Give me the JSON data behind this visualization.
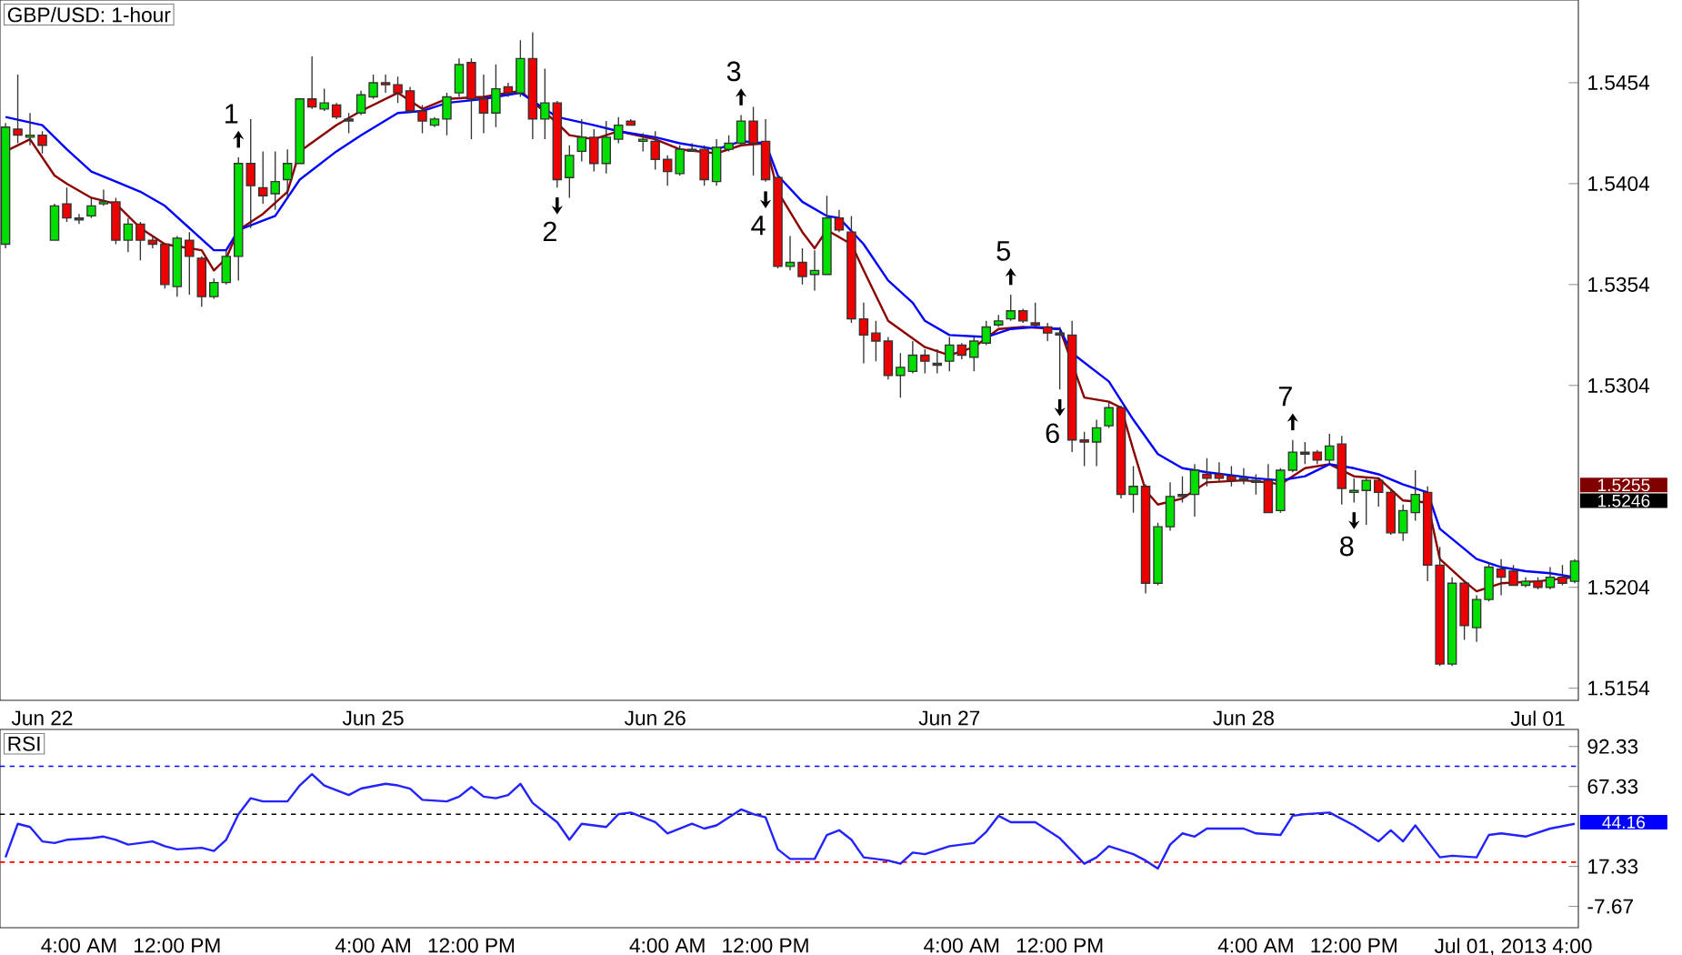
{
  "chart_data": [
    {
      "type": "candlestick",
      "title": "GBP/USD: 1-hour",
      "categories": [
        null,
        null,
        null,
        "Jun 22",
        null,
        null,
        null,
        null,
        null,
        null,
        null,
        null,
        null,
        null,
        null,
        null,
        null,
        null,
        null,
        null,
        null,
        null,
        null,
        null,
        null,
        null,
        null,
        null,
        null,
        null,
        "Jun 25",
        null,
        null,
        null,
        null,
        null,
        null,
        null,
        null,
        null,
        null,
        null,
        null,
        null,
        null,
        null,
        null,
        null,
        null,
        null,
        null,
        null,
        null,
        "Jun 26",
        null,
        null,
        null,
        null,
        null,
        null,
        null,
        null,
        null,
        null,
        null,
        null,
        null,
        null,
        null,
        null,
        null,
        null,
        null,
        null,
        null,
        null,
        null,
        "Jun 27",
        null,
        null,
        null,
        null,
        null,
        null,
        null,
        null,
        null,
        null,
        null,
        null,
        null,
        null,
        null,
        null,
        null,
        null,
        null,
        null,
        null,
        null,
        null,
        "Jun 28",
        null,
        null,
        null,
        null,
        null,
        null,
        null,
        null,
        null,
        null,
        null,
        null,
        null,
        null,
        null,
        null,
        null,
        null,
        null,
        null,
        null,
        null,
        null,
        "Jul 01",
        null,
        null,
        null
      ],
      "ohlc": [
        [
          1.5374,
          1.5434,
          1.5372,
          1.5432
        ],
        [
          1.5431,
          1.5458,
          1.5424,
          1.5428
        ],
        [
          1.5427,
          1.5439,
          1.5423,
          1.5428
        ],
        [
          1.5428,
          1.543,
          1.5419,
          1.5423
        ],
        [
          1.5376,
          1.5394,
          1.5376,
          1.5393
        ],
        [
          1.5394,
          1.5402,
          1.5385,
          1.5387
        ],
        [
          1.5387,
          1.5389,
          1.5384,
          1.5386
        ],
        [
          1.5388,
          1.5397,
          1.5387,
          1.5393
        ],
        [
          1.5394,
          1.5401,
          1.5393,
          1.5395
        ],
        [
          1.5395,
          1.5397,
          1.5374,
          1.5376
        ],
        [
          1.5376,
          1.5387,
          1.537,
          1.5384
        ],
        [
          1.5384,
          1.5385,
          1.5366,
          1.5376
        ],
        [
          1.5376,
          1.5378,
          1.5372,
          1.5374
        ],
        [
          1.5374,
          1.5374,
          1.5352,
          1.5354
        ],
        [
          1.5353,
          1.5378,
          1.5348,
          1.5377
        ],
        [
          1.5376,
          1.538,
          1.5349,
          1.5368
        ],
        [
          1.5367,
          1.5368,
          1.5343,
          1.5348
        ],
        [
          1.5348,
          1.5357,
          1.5347,
          1.5355
        ],
        [
          1.5355,
          1.5371,
          1.5354,
          1.5368
        ],
        [
          1.5368,
          1.5417,
          1.5356,
          1.5414
        ],
        [
          1.5414,
          1.5436,
          1.5382,
          1.5403
        ],
        [
          1.5402,
          1.542,
          1.5394,
          1.5398
        ],
        [
          1.5399,
          1.542,
          1.5391,
          1.5405
        ],
        [
          1.5406,
          1.5421,
          1.5397,
          1.5414
        ],
        [
          1.5414,
          1.5446,
          1.5414,
          1.5446
        ],
        [
          1.5446,
          1.5467,
          1.5441,
          1.5442
        ],
        [
          1.5441,
          1.5451,
          1.544,
          1.5444
        ],
        [
          1.5443,
          1.5444,
          1.5436,
          1.5437
        ],
        [
          1.5436,
          1.5439,
          1.5429,
          1.5435
        ],
        [
          1.5439,
          1.545,
          1.5438,
          1.5448
        ],
        [
          1.5447,
          1.5458,
          1.5446,
          1.5454
        ],
        [
          1.5454,
          1.5458,
          1.5449,
          1.5453
        ],
        [
          1.5453,
          1.5457,
          1.5444,
          1.5449
        ],
        [
          1.545,
          1.5452,
          1.5439,
          1.544
        ],
        [
          1.544,
          1.5443,
          1.5429,
          1.5435
        ],
        [
          1.5433,
          1.5437,
          1.5432,
          1.5436
        ],
        [
          1.5436,
          1.5449,
          1.5428,
          1.5447
        ],
        [
          1.5449,
          1.5466,
          1.5447,
          1.5463
        ],
        [
          1.5464,
          1.5466,
          1.5426,
          1.5446
        ],
        [
          1.5446,
          1.5458,
          1.5429,
          1.5439
        ],
        [
          1.5439,
          1.5463,
          1.5432,
          1.5451
        ],
        [
          1.5452,
          1.5454,
          1.5447,
          1.5449
        ],
        [
          1.5449,
          1.5475,
          1.5447,
          1.5466
        ],
        [
          1.5466,
          1.5479,
          1.5426,
          1.5436
        ],
        [
          1.5436,
          1.5461,
          1.5426,
          1.5444
        ],
        [
          1.5444,
          1.5445,
          1.5402,
          1.5406
        ],
        [
          1.5407,
          1.5423,
          1.5397,
          1.5418
        ],
        [
          1.542,
          1.5436,
          1.5415,
          1.5427
        ],
        [
          1.5427,
          1.5431,
          1.541,
          1.5414
        ],
        [
          1.5414,
          1.5435,
          1.5409,
          1.5427
        ],
        [
          1.5426,
          1.5437,
          1.5424,
          1.5433
        ],
        [
          1.5435,
          1.5436,
          1.5433,
          1.5433
        ],
        [
          1.5425,
          1.5429,
          1.542,
          1.5426
        ],
        [
          1.5425,
          1.543,
          1.5411,
          1.5416
        ],
        [
          1.5416,
          1.5418,
          1.5403,
          1.541
        ],
        [
          1.5409,
          1.5423,
          1.5408,
          1.5421
        ],
        [
          1.5421,
          1.5424,
          1.542,
          1.542
        ],
        [
          1.5421,
          1.5423,
          1.5403,
          1.5406
        ],
        [
          1.5405,
          1.5426,
          1.5403,
          1.5422
        ],
        [
          1.5421,
          1.5428,
          1.542,
          1.5424
        ],
        [
          1.5424,
          1.5438,
          1.5423,
          1.5435
        ],
        [
          1.5435,
          1.5442,
          1.5408,
          1.5424
        ],
        [
          1.5425,
          1.5436,
          1.5405,
          1.5406
        ],
        [
          1.5407,
          1.5408,
          1.5362,
          1.5363
        ],
        [
          1.5363,
          1.5378,
          1.5361,
          1.5365
        ],
        [
          1.5365,
          1.5372,
          1.5354,
          1.5358
        ],
        [
          1.5359,
          1.5371,
          1.5351,
          1.5361
        ],
        [
          1.5359,
          1.5398,
          1.5359,
          1.5387
        ],
        [
          1.5387,
          1.5391,
          1.538,
          1.5381
        ],
        [
          1.538,
          1.5388,
          1.5335,
          1.5337
        ],
        [
          1.5337,
          1.5345,
          1.5315,
          1.5329
        ],
        [
          1.533,
          1.5336,
          1.5316,
          1.5326
        ],
        [
          1.5326,
          1.5328,
          1.5307,
          1.5309
        ],
        [
          1.5309,
          1.532,
          1.5298,
          1.5313
        ],
        [
          1.5311,
          1.5326,
          1.531,
          1.5319
        ],
        [
          1.5319,
          1.5322,
          1.531,
          1.5316
        ],
        [
          1.5315,
          1.5322,
          1.531,
          1.5314
        ],
        [
          1.5316,
          1.5328,
          1.5311,
          1.5324
        ],
        [
          1.5324,
          1.5325,
          1.5317,
          1.5319
        ],
        [
          1.5318,
          1.5328,
          1.5311,
          1.5326
        ],
        [
          1.5325,
          1.5336,
          1.5324,
          1.5333
        ],
        [
          1.5334,
          1.5339,
          1.5333,
          1.5336
        ],
        [
          1.5337,
          1.5349,
          1.5336,
          1.5341
        ],
        [
          1.5341,
          1.5342,
          1.5335,
          1.5336
        ],
        [
          1.5335,
          1.5345,
          1.5333,
          1.5334
        ],
        [
          1.5333,
          1.5335,
          1.5326,
          1.533
        ],
        [
          1.533,
          1.5333,
          1.5302,
          1.5329
        ],
        [
          1.5329,
          1.5336,
          1.5271,
          1.5277
        ],
        [
          1.5277,
          1.5281,
          1.5264,
          1.5276
        ],
        [
          1.5276,
          1.5287,
          1.5264,
          1.5283
        ],
        [
          1.5284,
          1.5296,
          1.5283,
          1.5293
        ],
        [
          1.5293,
          1.5294,
          1.5248,
          1.525
        ],
        [
          1.525,
          1.5264,
          1.5241,
          1.5254
        ],
        [
          1.5254,
          1.5255,
          1.5201,
          1.5206
        ],
        [
          1.5206,
          1.5236,
          1.5205,
          1.5234
        ],
        [
          1.5234,
          1.5256,
          1.5232,
          1.5249
        ],
        [
          1.525,
          1.5259,
          1.5246,
          1.5249
        ],
        [
          1.525,
          1.5265,
          1.5239,
          1.5262
        ],
        [
          1.526,
          1.5268,
          1.5254,
          1.5258
        ],
        [
          1.526,
          1.5266,
          1.5256,
          1.5258
        ],
        [
          1.5259,
          1.5264,
          1.5254,
          1.5257
        ],
        [
          1.5258,
          1.5263,
          1.5255,
          1.5257
        ],
        [
          1.5257,
          1.526,
          1.525,
          1.5256
        ],
        [
          1.5257,
          1.5265,
          1.5241,
          1.5241
        ],
        [
          1.5242,
          1.5263,
          1.5241,
          1.5262
        ],
        [
          1.5262,
          1.5277,
          1.5261,
          1.5271
        ],
        [
          1.5271,
          1.5276,
          1.5265,
          1.527
        ],
        [
          1.5271,
          1.5272,
          1.5265,
          1.5267
        ],
        [
          1.5267,
          1.528,
          1.5265,
          1.5274
        ],
        [
          1.5275,
          1.5279,
          1.5245,
          1.5253
        ],
        [
          1.5251,
          1.5258,
          1.5246,
          1.5252
        ],
        [
          1.5252,
          1.5258,
          1.5235,
          1.5257
        ],
        [
          1.5257,
          1.5258,
          1.5244,
          1.5251
        ],
        [
          1.5251,
          1.5253,
          1.523,
          1.5231
        ],
        [
          1.5231,
          1.5245,
          1.5227,
          1.5242
        ],
        [
          1.5241,
          1.5262,
          1.5237,
          1.525
        ],
        [
          1.5251,
          1.5254,
          1.5207,
          1.5215
        ],
        [
          1.5215,
          1.5224,
          1.5165,
          1.5166
        ],
        [
          1.5166,
          1.5209,
          1.5165,
          1.5206
        ],
        [
          1.5206,
          1.5207,
          1.5178,
          1.5185
        ],
        [
          1.5184,
          1.52,
          1.5177,
          1.5198
        ],
        [
          1.5198,
          1.5216,
          1.5197,
          1.5214
        ],
        [
          1.5213,
          1.5218,
          1.52,
          1.5209
        ],
        [
          1.5212,
          1.5215,
          1.5205,
          1.5205
        ],
        [
          1.5205,
          1.5209,
          1.5204,
          1.5207
        ],
        [
          1.5207,
          1.5209,
          1.5203,
          1.5204
        ],
        [
          1.5204,
          1.5214,
          1.5203,
          1.5209
        ],
        [
          1.5209,
          1.5215,
          1.5205,
          1.5206
        ],
        [
          1.5207,
          1.5218,
          1.5206,
          1.5217
        ]
      ],
      "colors": [
        "#00e000",
        "#ee0000",
        "#00e000",
        "#ee0000",
        "#00e000",
        "#ee0000",
        "#404040",
        "#00e000",
        "#00e000",
        "#ee0000",
        "#00e000",
        "#ee0000",
        "#ee0000",
        "#ee0000",
        "#00e000",
        "#ee0000",
        "#ee0000",
        "#00e000",
        "#00e000",
        "#00e000",
        "#ee0000",
        "#ee0000",
        "#00e000",
        "#00e000",
        "#00e000",
        "#ee0000",
        "#00e000",
        "#ee0000",
        "#404040",
        "#00e000",
        "#00e000",
        "#ee0000",
        "#ee0000",
        "#ee0000",
        "#ee0000",
        "#00e000",
        "#00e000",
        "#00e000",
        "#ee0000",
        "#ee0000",
        "#00e000",
        "#ee0000",
        "#00e000",
        "#ee0000",
        "#00e000",
        "#ee0000",
        "#00e000",
        "#00e000",
        "#ee0000",
        "#00e000",
        "#00e000",
        "#ee0000",
        "#00e000",
        "#ee0000",
        "#ee0000",
        "#00e000",
        "#404040",
        "#ee0000",
        "#00e000",
        "#00e000",
        "#00e000",
        "#ee0000",
        "#ee0000",
        "#ee0000",
        "#00e000",
        "#ee0000",
        "#00e000",
        "#00e000",
        "#ee0000",
        "#ee0000",
        "#ee0000",
        "#ee0000",
        "#ee0000",
        "#00e000",
        "#00e000",
        "#ee0000",
        "#404040",
        "#00e000",
        "#ee0000",
        "#00e000",
        "#00e000",
        "#00e000",
        "#00e000",
        "#ee0000",
        "#ee0000",
        "#ee0000",
        "#404040",
        "#ee0000",
        "#ee0000",
        "#00e000",
        "#00e000",
        "#ee0000",
        "#00e000",
        "#ee0000",
        "#00e000",
        "#00e000",
        "#404040",
        "#00e000",
        "#ee0000",
        "#ee0000",
        "#ee0000",
        "#404040",
        "#404040",
        "#ee0000",
        "#00e000",
        "#00e000",
        "#404040",
        "#ee0000",
        "#00e000",
        "#ee0000",
        "#00e000",
        "#00e000",
        "#ee0000",
        "#ee0000",
        "#00e000",
        "#00e000",
        "#ee0000",
        "#ee0000",
        "#00e000",
        "#ee0000",
        "#00e000",
        "#00e000",
        "#ee0000",
        "#ee0000",
        "#00e000",
        "#ee0000",
        "#00e000",
        "#ee0000",
        "#00e000"
      ],
      "series": [
        {
          "type": "line",
          "color": "#8b0000",
          "values": [
            1.542,
            null,
            1.5426,
            null,
            1.5408,
            1.5404,
            null,
            1.5397,
            null,
            1.5394,
            null,
            1.5382,
            null,
            1.5374,
            null,
            null,
            1.5371,
            1.5361,
            1.5367,
            1.5381,
            null,
            1.5389,
            null,
            1.54,
            1.542,
            null,
            null,
            1.5433,
            null,
            1.544,
            null,
            null,
            1.5449,
            null,
            1.5441,
            null,
            1.5446,
            null,
            null,
            1.5447,
            null,
            null,
            1.545,
            null,
            null,
            1.5434,
            1.5428,
            null,
            1.5426,
            null,
            1.543,
            null,
            null,
            1.5426,
            null,
            1.5421,
            null,
            null,
            1.5419,
            null,
            1.5423,
            null,
            1.5424,
            1.54,
            null,
            1.538,
            1.5372,
            1.5381,
            null,
            1.5374,
            1.5361,
            null,
            1.5336,
            null,
            null,
            1.5323,
            null,
            1.5319,
            null,
            1.5323,
            null,
            1.5332,
            null,
            1.5333,
            null,
            null,
            1.5332,
            null,
            1.5298,
            null,
            1.5296,
            1.5293,
            1.5272,
            1.5252,
            1.5245,
            null,
            1.5248,
            null,
            1.5256,
            null,
            null,
            1.5257,
            null,
            1.5256,
            1.5255,
            null,
            1.5263,
            null,
            1.5265,
            null,
            1.5259,
            null,
            1.5258,
            null,
            1.5247,
            null,
            1.5246,
            1.5218,
            null,
            1.5207,
            1.5202,
            null,
            1.5206,
            null,
            null,
            1.5207,
            null,
            null,
            1.5209
          ]
        },
        {
          "type": "line",
          "color": "#0000ff",
          "values": [
            1.5437,
            null,
            null,
            1.5433,
            null,
            1.5421,
            null,
            1.541,
            null,
            1.5405,
            null,
            1.54,
            null,
            1.5393,
            null,
            1.5382,
            null,
            1.5371,
            1.5371,
            1.5381,
            null,
            null,
            1.5388,
            null,
            1.5406,
            null,
            null,
            1.542,
            null,
            1.5428,
            null,
            null,
            1.5439,
            null,
            1.544,
            null,
            1.5444,
            null,
            null,
            1.5446,
            null,
            null,
            1.5449,
            null,
            null,
            1.5437,
            null,
            null,
            1.5433,
            null,
            1.543,
            null,
            null,
            1.5427,
            null,
            1.5424,
            null,
            null,
            1.5421,
            null,
            1.5425,
            null,
            1.5424,
            1.5408,
            null,
            1.5395,
            null,
            1.5388,
            1.5387,
            null,
            1.5374,
            null,
            1.5356,
            null,
            1.5345,
            1.5336,
            null,
            1.5329,
            null,
            null,
            1.5328,
            null,
            1.5332,
            null,
            1.5333,
            null,
            1.5332,
            1.532,
            null,
            null,
            1.5306,
            null,
            1.5287,
            null,
            1.527,
            null,
            1.5263,
            null,
            1.5261,
            null,
            null,
            null,
            1.5258,
            null,
            1.5257,
            null,
            1.5259,
            null,
            1.5265,
            null,
            1.5263,
            null,
            1.526,
            null,
            1.5255,
            null,
            1.5251,
            1.5233,
            null,
            null,
            1.5218,
            null,
            1.5214,
            null,
            1.5212,
            null,
            1.5211,
            null,
            1.5209
          ]
        }
      ],
      "ylim": [
        1.5148,
        1.5495
      ],
      "yticks": [
        1.5154,
        1.5204,
        1.5304,
        1.5354,
        1.5404,
        1.5454
      ],
      "annotations": [
        {
          "text": "1",
          "y": 1.5417
        },
        {
          "text": "2",
          "y": 1.5402
        },
        {
          "text": "3",
          "y": 1.5438
        },
        {
          "text": "4",
          "y": 1.5405
        },
        {
          "text": "5",
          "y": 1.5349
        },
        {
          "text": "6",
          "y": 1.5302
        },
        {
          "text": "7",
          "y": 1.5277
        },
        {
          "text": "8",
          "y": 1.5246
        },
        "1.5255",
        "1.5246"
      ]
    },
    {
      "type": "line",
      "title": "RSI",
      "categories": [
        null,
        null,
        null,
        null,
        null,
        null,
        "4:00 AM",
        null,
        null,
        null,
        null,
        null,
        null,
        null,
        "12:00 PM",
        null,
        null,
        null,
        null,
        null,
        null,
        null,
        null,
        null,
        null,
        null,
        null,
        null,
        null,
        null,
        "4:00 AM",
        null,
        null,
        null,
        null,
        null,
        null,
        null,
        "12:00 PM",
        null,
        null,
        null,
        null,
        null,
        null,
        null,
        null,
        null,
        null,
        null,
        null,
        null,
        null,
        null,
        "4:00 AM",
        null,
        null,
        null,
        null,
        null,
        null,
        null,
        "12:00 PM",
        null,
        null,
        null,
        null,
        null,
        null,
        null,
        null,
        null,
        null,
        null,
        null,
        null,
        null,
        null,
        "4:00 AM",
        null,
        null,
        null,
        null,
        null,
        null,
        null,
        "12:00 PM",
        null,
        null,
        null,
        null,
        null,
        null,
        null,
        null,
        null,
        null,
        null,
        null,
        null,
        null,
        null,
        "4:00 AM",
        null,
        null,
        null,
        null,
        null,
        null,
        null,
        "12:00 PM",
        null,
        null,
        null,
        null,
        null,
        null,
        null,
        null,
        null,
        null,
        null,
        null,
        "Jul 01, 2013 4:00",
        null,
        null,
        null,
        null,
        null
      ],
      "series": [
        {
          "color": "#2323ff",
          "values": [
            23,
            44,
            42,
            33,
            32,
            34,
            null,
            35,
            36,
            34,
            31,
            32,
            33,
            30,
            28,
            null,
            29,
            27,
            34,
            50,
            60,
            58,
            null,
            58,
            68,
            75,
            68,
            null,
            62,
            66,
            null,
            69,
            68,
            66,
            59,
            null,
            58,
            61,
            67,
            61,
            60,
            62,
            69,
            57,
            null,
            45,
            34,
            44,
            null,
            42,
            50,
            51,
            null,
            45,
            38,
            null,
            44,
            41,
            43,
            null,
            53,
            50,
            48,
            28,
            22,
            null,
            22,
            37,
            40,
            34,
            23,
            null,
            21,
            19,
            26,
            25,
            null,
            30,
            null,
            32,
            39,
            49,
            45,
            null,
            45,
            null,
            35,
            null,
            19,
            23,
            30,
            null,
            25,
            21,
            16,
            31,
            38,
            36,
            41,
            null,
            null,
            41,
            38,
            null,
            37,
            49,
            50,
            null,
            51,
            null,
            43,
            null,
            33,
            40,
            33,
            43,
            null,
            23,
            24,
            null,
            23,
            37,
            38,
            null,
            36,
            null,
            41,
            null,
            44
          ]
        }
      ],
      "ylim": [
        -21,
        103
      ],
      "yticks": [
        -7.67,
        17.33,
        67.33,
        92.33
      ],
      "ref_lines": [
        {
          "axis": "y",
          "value": 80,
          "color": "#0000ff",
          "line_style": "dashed"
        },
        {
          "axis": "y",
          "value": 50,
          "color": "#000000",
          "line_style": "dashed"
        },
        {
          "axis": "y",
          "value": 20,
          "color": "#ff0000",
          "line_style": "dashed"
        }
      ],
      "annotations": [
        "44.16"
      ]
    }
  ]
}
